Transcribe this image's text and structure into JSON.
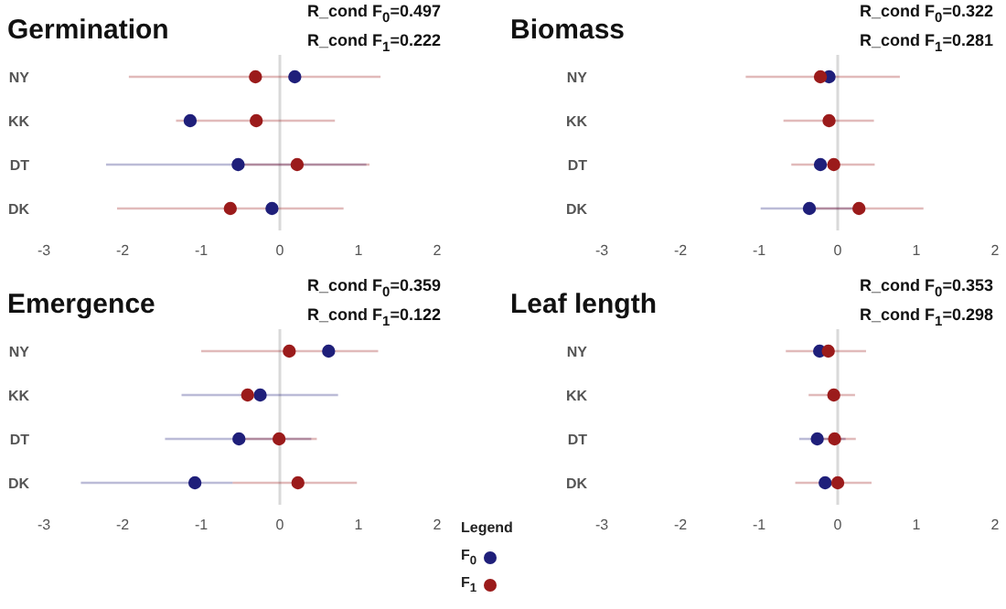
{
  "chart_data": [
    {
      "type": "scatter",
      "orientation": "horizontal",
      "title": "Germination",
      "annotations": [
        "R_cond F$_{0}$=0.497",
        "R_cond F$_{1}$=0.222"
      ],
      "categories": [
        "NY",
        "KK",
        "DT",
        "DK"
      ],
      "xlim": [
        -3,
        2
      ],
      "xticks": [
        -3,
        -2,
        -1,
        0,
        1,
        2
      ],
      "marker": "circle",
      "ref_lines": [
        {
          "axis": "x",
          "value": 0,
          "color": "#d9d9d9"
        }
      ],
      "series": [
        {
          "color": "#1f1f7a",
          "values": [
            0.19,
            -1.14,
            -0.53,
            -0.1
          ],
          "errors": [
            null,
            null,
            [
              -2.21,
              1.1
            ],
            null
          ]
        },
        {
          "color": "#9b1b1b",
          "values": [
            -0.31,
            -0.3,
            0.22,
            -0.63
          ],
          "errors": [
            [
              -1.92,
              1.28
            ],
            [
              -1.32,
              0.7
            ],
            [
              -0.55,
              1.14
            ],
            [
              -2.07,
              0.81
            ]
          ]
        }
      ]
    },
    {
      "type": "scatter",
      "orientation": "horizontal",
      "title": "Biomass",
      "annotations": [
        "R_cond F$_{0}$=0.322",
        "R_cond F$_{1}$=0.281"
      ],
      "categories": [
        "NY",
        "KK",
        "DT",
        "DK"
      ],
      "xlim": [
        -3,
        2
      ],
      "xticks": [
        -3,
        -2,
        -1,
        0,
        1,
        2
      ],
      "marker": "circle",
      "ref_lines": [
        {
          "axis": "x",
          "value": 0,
          "color": "#d9d9d9"
        }
      ],
      "series": [
        {
          "color": "#1f1f7a",
          "values": [
            -0.11,
            null,
            -0.22,
            -0.36
          ],
          "errors": [
            null,
            null,
            null,
            [
              -0.98,
              0.3
            ]
          ]
        },
        {
          "color": "#9b1b1b",
          "values": [
            -0.22,
            -0.11,
            -0.05,
            0.27
          ],
          "errors": [
            [
              -1.17,
              0.79
            ],
            [
              -0.69,
              0.46
            ],
            [
              -0.59,
              0.47
            ],
            [
              -0.4,
              1.09
            ]
          ]
        }
      ]
    },
    {
      "type": "scatter",
      "orientation": "horizontal",
      "title": "Emergence",
      "annotations": [
        "R_cond F$_{0}$=0.359",
        "R_cond F$_{1}$=0.122"
      ],
      "categories": [
        "NY",
        "KK",
        "DT",
        "DK"
      ],
      "xlim": [
        -3,
        2
      ],
      "xticks": [
        -3,
        -2,
        -1,
        0,
        1,
        2
      ],
      "marker": "circle",
      "legend": "bottom",
      "legend_title": "Legend",
      "ref_lines": [
        {
          "axis": "x",
          "value": 0,
          "color": "#d9d9d9"
        }
      ],
      "series": [
        {
          "name": "F$_{0}$",
          "color": "#1f1f7a",
          "values": [
            0.62,
            -0.25,
            -0.52,
            -1.08
          ],
          "errors": [
            null,
            [
              -1.25,
              0.74
            ],
            [
              -1.46,
              0.4
            ],
            [
              -2.53,
              -0.6
            ]
          ]
        },
        {
          "name": "F$_{1}$",
          "color": "#9b1b1b",
          "values": [
            0.12,
            -0.41,
            -0.01,
            0.23
          ],
          "errors": [
            [
              -1.0,
              1.25
            ],
            null,
            [
              -0.45,
              0.47
            ],
            [
              -0.6,
              0.98
            ]
          ]
        }
      ]
    },
    {
      "type": "scatter",
      "orientation": "horizontal",
      "title": "Leaf length",
      "annotations": [
        "R_cond F$_{0}$=0.353",
        "R_cond F$_{1}$=0.298"
      ],
      "categories": [
        "NY",
        "KK",
        "DT",
        "DK"
      ],
      "xlim": [
        -3,
        2
      ],
      "xticks": [
        -3,
        -2,
        -1,
        0,
        1,
        2
      ],
      "marker": "circle",
      "ref_lines": [
        {
          "axis": "x",
          "value": 0,
          "color": "#d9d9d9"
        }
      ],
      "series": [
        {
          "color": "#1f1f7a",
          "values": [
            -0.23,
            null,
            -0.26,
            -0.16
          ],
          "errors": [
            null,
            null,
            [
              -0.49,
              0.1
            ],
            null
          ]
        },
        {
          "color": "#9b1b1b",
          "values": [
            -0.12,
            -0.05,
            -0.04,
            0.0
          ],
          "errors": [
            [
              -0.66,
              0.36
            ],
            [
              -0.37,
              0.22
            ],
            [
              -0.2,
              0.23
            ],
            [
              -0.54,
              0.43
            ]
          ]
        }
      ]
    }
  ]
}
